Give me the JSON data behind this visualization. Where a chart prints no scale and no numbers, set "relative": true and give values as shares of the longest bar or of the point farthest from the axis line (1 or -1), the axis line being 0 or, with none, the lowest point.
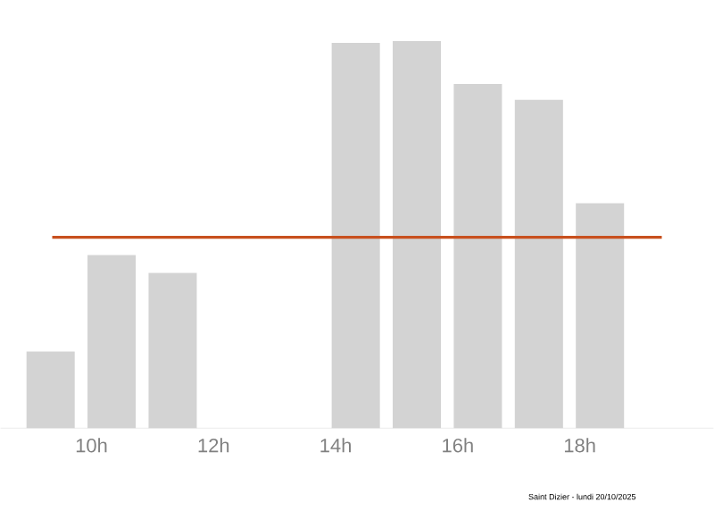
{
  "chart_data": {
    "type": "bar",
    "relative": true,
    "x": [
      9.33,
      10.33,
      11.33,
      12.33,
      13.33,
      14.33,
      15.33,
      16.33,
      17.33,
      18.33,
      19.33
    ],
    "values": [
      0.198,
      0.447,
      0.401,
      0,
      0,
      0.995,
      1,
      0.889,
      0.848,
      0.581,
      0
    ],
    "color": "#d3d3d3",
    "xlim": [
      8.51,
      20.19
    ],
    "xticks": [
      {
        "value": 10,
        "label": "10h"
      },
      {
        "value": 12,
        "label": "12h"
      },
      {
        "value": 14,
        "label": "14h"
      },
      {
        "value": 16,
        "label": "16h"
      },
      {
        "value": 18,
        "label": "18h"
      }
    ],
    "ref_lines": [
      {
        "axis": "y",
        "value": 0.493,
        "color": "#c8501e",
        "label": null
      }
    ],
    "annotations": [
      "Saint Dizier - lundi 20/10/2025"
    ],
    "grid": false
  }
}
